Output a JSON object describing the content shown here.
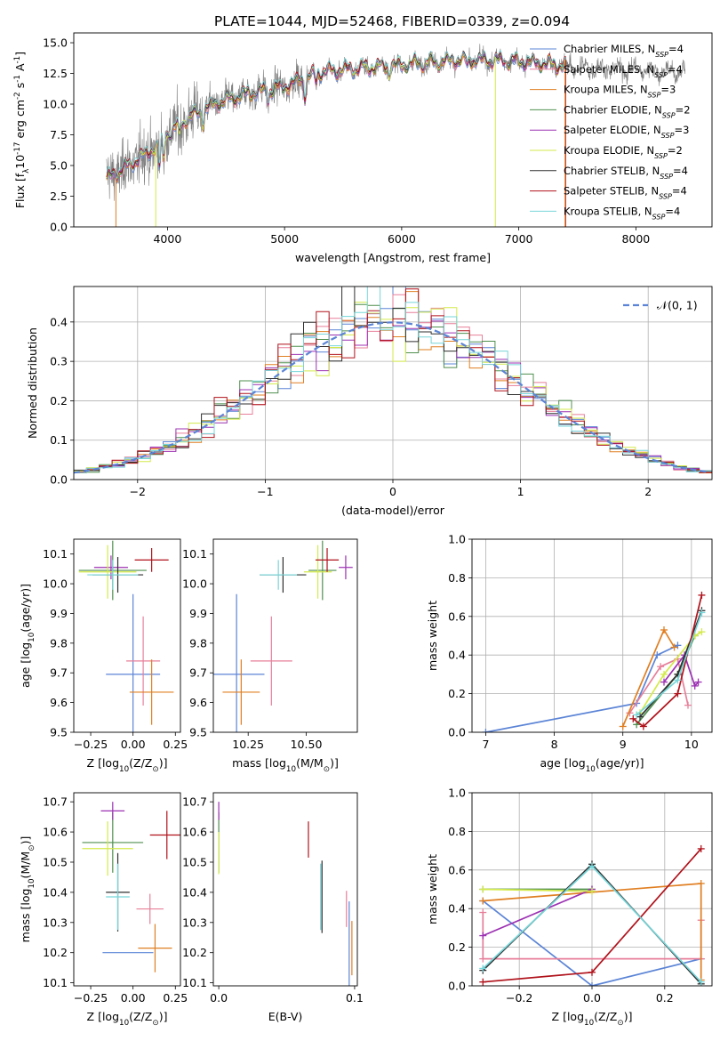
{
  "figure": {
    "title": "PLATE=1044, MJD=52468, FIBERID=0339, z=0.094"
  },
  "colors": {
    "chabrier_miles": "#5b84d6",
    "salpeter_miles": "#e77f9a",
    "kroupa_miles": "#e07f22",
    "chabrier_elodie": "#4f8f4f",
    "salpeter_elodie": "#9c31b3",
    "kroupa_elodie": "#d4ea4b",
    "chabrier_stelib": "#2f2f2f",
    "salpeter_stelib": "#b0121b",
    "kroupa_stelib": "#77d5d9",
    "data": "#7f7f7f",
    "normal": "#5b84d6",
    "grid": "#b0b0b0"
  },
  "chart_data": [
    {
      "id": "spectrum",
      "type": "line",
      "xlabel": "wavelength [Angstrom, rest frame]",
      "ylabel": "Flux [f$_\\lambda$10$^{-17}$ erg cm$^{-2}$ s$^{-1}$ A$^{-1}$]",
      "xlim": [
        3200,
        8650
      ],
      "ylim": [
        0,
        15.8
      ],
      "xticks": [
        4000,
        5000,
        6000,
        7000,
        8000
      ],
      "yticks": [
        0.0,
        2.5,
        5.0,
        7.5,
        10.0,
        12.5,
        15.0
      ],
      "grid": false,
      "legend_position": "top-right",
      "legend": [
        {
          "label": "Chabrier MILES, N",
          "sub": "SSP",
          "tail": "=4"
        },
        {
          "label": "Salpeter MILES, N",
          "sub": "SSP",
          "tail": "=4"
        },
        {
          "label": "Kroupa MILES, N",
          "sub": "SSP",
          "tail": "=3"
        },
        {
          "label": "Chabrier ELODIE, N",
          "sub": "SSP",
          "tail": "=2"
        },
        {
          "label": "Salpeter ELODIE, N",
          "sub": "SSP",
          "tail": "=3"
        },
        {
          "label": "Kroupa ELODIE, N",
          "sub": "SSP",
          "tail": "=2"
        },
        {
          "label": "Chabrier STELIB, N",
          "sub": "SSP",
          "tail": "=4"
        },
        {
          "label": "Salpeter STELIB, N",
          "sub": "SSP",
          "tail": "=4"
        },
        {
          "label": "Kroupa STELIB, N",
          "sub": "SSP",
          "tail": "=4"
        }
      ],
      "continuum": [
        [
          3500,
          4.0
        ],
        [
          3700,
          5.2
        ],
        [
          3900,
          6.5
        ],
        [
          4000,
          7.6
        ],
        [
          4200,
          9.0
        ],
        [
          4400,
          10.0
        ],
        [
          4700,
          10.9
        ],
        [
          5000,
          11.4
        ],
        [
          5300,
          12.6
        ],
        [
          5600,
          12.9
        ],
        [
          6000,
          13.2
        ],
        [
          6500,
          13.6
        ],
        [
          7000,
          13.5
        ],
        [
          7500,
          13.0
        ],
        [
          8000,
          12.8
        ],
        [
          8400,
          12.6
        ]
      ],
      "absorption": [
        [
          3933,
          2.0
        ],
        [
          3968,
          1.8
        ],
        [
          4101,
          1.0
        ],
        [
          4304,
          1.0
        ],
        [
          4861,
          0.9
        ],
        [
          5175,
          1.4
        ],
        [
          5270,
          0.7
        ],
        [
          5893,
          0.8
        ],
        [
          6563,
          0.6
        ],
        [
          8542,
          0.6
        ]
      ],
      "data_range": [
        3480,
        8420
      ],
      "model_range": [
        3480,
        7400
      ],
      "spikes": [
        [
          6800,
          0
        ],
        [
          7400,
          0
        ],
        [
          3530,
          0
        ],
        [
          3580,
          0
        ]
      ]
    },
    {
      "id": "residuals",
      "type": "histogram",
      "xlabel": "(data-model)/error",
      "ylabel": "Normed distribution",
      "xlim": [
        -2.5,
        2.5
      ],
      "ylim": [
        0,
        0.49
      ],
      "xticks": [
        -2,
        -1,
        0,
        1,
        2
      ],
      "yticks": [
        0.0,
        0.1,
        0.2,
        0.3,
        0.4
      ],
      "grid": true,
      "bin_width": 0.1,
      "legend_position": "top-right",
      "legend": [
        {
          "label": "𝒩(0, 1)"
        }
      ],
      "normal_curve": {
        "mean": 0,
        "sigma": 1
      }
    },
    {
      "id": "age_vs_Z",
      "type": "errorbar",
      "xlabel": "Z [log$_{10}$(Z/Z$_\\odot$)]",
      "ylabel": "age  [log$_{10}$(age/yr)]",
      "xlim": [
        -0.35,
        0.28
      ],
      "ylim": [
        9.5,
        10.15
      ],
      "xticks": [
        -0.25,
        0.0,
        0.25
      ],
      "yticks": [
        9.5,
        9.6,
        9.7,
        9.8,
        9.9,
        10.0,
        10.1
      ],
      "grid": false,
      "points": [
        {
          "series": "chabrier_miles",
          "x": 0.0,
          "y": 9.695,
          "xerr": 0.16,
          "yerr": 0.27
        },
        {
          "series": "salpeter_miles",
          "x": 0.06,
          "y": 9.74,
          "xerr": 0.1,
          "yerr": 0.15
        },
        {
          "series": "kroupa_miles",
          "x": 0.11,
          "y": 9.635,
          "xerr": 0.13,
          "yerr": 0.11
        },
        {
          "series": "chabrier_elodie",
          "x": -0.12,
          "y": 10.045,
          "xerr": 0.2,
          "yerr": 0.1
        },
        {
          "series": "salpeter_elodie",
          "x": -0.13,
          "y": 10.055,
          "xerr": 0.1,
          "yerr": 0.04
        },
        {
          "series": "kroupa_elodie",
          "x": -0.15,
          "y": 10.04,
          "xerr": 0.17,
          "yerr": 0.09
        },
        {
          "series": "chabrier_stelib",
          "x": -0.09,
          "y": 10.03,
          "xerr": 0.15,
          "yerr": 0.06
        },
        {
          "series": "salpeter_stelib",
          "x": 0.11,
          "y": 10.08,
          "xerr": 0.1,
          "yerr": 0.04
        },
        {
          "series": "kroupa_stelib",
          "x": -0.12,
          "y": 10.03,
          "xerr": 0.15,
          "yerr": 0.05
        }
      ]
    },
    {
      "id": "age_vs_mass",
      "type": "errorbar",
      "xlabel": "mass [log$_{10}$(M/M$_\\odot$)]",
      "ylabel": "",
      "xlim": [
        10.1,
        10.72
      ],
      "ylim": [
        9.5,
        10.15
      ],
      "xticks": [
        10.25,
        10.5
      ],
      "yticks": [
        9.5,
        9.6,
        9.7,
        9.8,
        9.9,
        10.0,
        10.1
      ],
      "xtick_labels": [
        "10.25",
        "10.50"
      ],
      "grid": false,
      "points": [
        {
          "series": "chabrier_miles",
          "x": 10.2,
          "y": 9.695,
          "xerr": 0.12,
          "yerr": 0.27
        },
        {
          "series": "salpeter_miles",
          "x": 10.35,
          "y": 9.74,
          "xerr": 0.09,
          "yerr": 0.15
        },
        {
          "series": "kroupa_miles",
          "x": 10.22,
          "y": 9.635,
          "xerr": 0.08,
          "yerr": 0.11
        },
        {
          "series": "chabrier_elodie",
          "x": 10.57,
          "y": 10.045,
          "xerr": 0.06,
          "yerr": 0.1
        },
        {
          "series": "salpeter_elodie",
          "x": 10.67,
          "y": 10.055,
          "xerr": 0.03,
          "yerr": 0.04
        },
        {
          "series": "kroupa_elodie",
          "x": 10.55,
          "y": 10.04,
          "xerr": 0.06,
          "yerr": 0.09
        },
        {
          "series": "chabrier_stelib",
          "x": 10.4,
          "y": 10.03,
          "xerr": 0.1,
          "yerr": 0.06
        },
        {
          "series": "salpeter_stelib",
          "x": 10.59,
          "y": 10.08,
          "xerr": 0.05,
          "yerr": 0.04
        },
        {
          "series": "kroupa_stelib",
          "x": 10.38,
          "y": 10.03,
          "xerr": 0.08,
          "yerr": 0.05
        }
      ]
    },
    {
      "id": "weight_vs_age",
      "type": "line",
      "xlabel": "age  [log$_{10}$(age/yr)]",
      "ylabel": "mass weight",
      "xlim": [
        6.8,
        10.3
      ],
      "ylim": [
        0,
        1.0
      ],
      "xticks": [
        7,
        8,
        9,
        10
      ],
      "yticks": [
        0.0,
        0.2,
        0.4,
        0.6,
        0.8,
        1.0
      ],
      "grid": true,
      "series": [
        {
          "name": "chabrier_miles",
          "points": [
            [
              7.0,
              0.0
            ],
            [
              9.2,
              0.15
            ],
            [
              9.5,
              0.4
            ],
            [
              9.8,
              0.45
            ]
          ]
        },
        {
          "name": "salpeter_miles",
          "points": [
            [
              9.1,
              0.1
            ],
            [
              9.55,
              0.34
            ],
            [
              9.8,
              0.38
            ],
            [
              9.95,
              0.14
            ]
          ]
        },
        {
          "name": "kroupa_miles",
          "points": [
            [
              9.0,
              0.03
            ],
            [
              9.6,
              0.53
            ],
            [
              9.75,
              0.44
            ]
          ]
        },
        {
          "name": "chabrier_elodie",
          "points": [
            [
              9.2,
              0.04
            ],
            [
              9.8,
              0.3
            ],
            [
              10.05,
              0.5
            ]
          ]
        },
        {
          "name": "salpeter_elodie",
          "points": [
            [
              9.6,
              0.26
            ],
            [
              9.9,
              0.4
            ],
            [
              10.05,
              0.24
            ],
            [
              10.1,
              0.26
            ]
          ]
        },
        {
          "name": "kroupa_elodie",
          "points": [
            [
              9.25,
              0.1
            ],
            [
              9.6,
              0.3
            ],
            [
              10.05,
              0.5
            ],
            [
              10.15,
              0.52
            ]
          ]
        },
        {
          "name": "chabrier_stelib",
          "points": [
            [
              9.25,
              0.08
            ],
            [
              9.8,
              0.3
            ],
            [
              10.15,
              0.63
            ]
          ]
        },
        {
          "name": "salpeter_stelib",
          "points": [
            [
              9.15,
              0.07
            ],
            [
              9.3,
              0.03
            ],
            [
              9.8,
              0.2
            ],
            [
              10.15,
              0.71
            ]
          ]
        },
        {
          "name": "kroupa_stelib",
          "points": [
            [
              9.2,
              0.09
            ],
            [
              9.8,
              0.27
            ],
            [
              10.15,
              0.62
            ]
          ]
        }
      ]
    },
    {
      "id": "mass_vs_Z",
      "type": "errorbar",
      "xlabel": "Z [log$_{10}$(Z/Z$_\\odot$)]",
      "ylabel": "mass [log$_{10}$(M/M$_\\odot$)]",
      "xlim": [
        -0.35,
        0.28
      ],
      "ylim": [
        10.09,
        10.73
      ],
      "xticks": [
        -0.25,
        0.0,
        0.25
      ],
      "yticks": [
        10.1,
        10.2,
        10.3,
        10.4,
        10.5,
        10.6,
        10.7
      ],
      "grid": false,
      "points": [
        {
          "series": "chabrier_miles",
          "x": -0.03,
          "y": 10.2,
          "xerr": 0.15,
          "yerr": 0.0
        },
        {
          "series": "salpeter_miles",
          "x": 0.1,
          "y": 10.345,
          "xerr": 0.08,
          "yerr": 0.05
        },
        {
          "series": "kroupa_miles",
          "x": 0.13,
          "y": 10.215,
          "xerr": 0.1,
          "yerr": 0.08
        },
        {
          "series": "chabrier_elodie",
          "x": -0.12,
          "y": 10.565,
          "xerr": 0.18,
          "yerr": 0.1
        },
        {
          "series": "salpeter_elodie",
          "x": -0.12,
          "y": 10.67,
          "xerr": 0.07,
          "yerr": 0.03
        },
        {
          "series": "kroupa_elodie",
          "x": -0.15,
          "y": 10.545,
          "xerr": 0.15,
          "yerr": 0.09
        },
        {
          "series": "chabrier_stelib",
          "x": -0.09,
          "y": 10.4,
          "xerr": 0.07,
          "yerr": 0.13
        },
        {
          "series": "salpeter_stelib",
          "x": 0.2,
          "y": 10.59,
          "xerr": 0.1,
          "yerr": 0.08
        },
        {
          "series": "kroupa_stelib",
          "x": -0.09,
          "y": 10.385,
          "xerr": 0.07,
          "yerr": 0.11
        }
      ]
    },
    {
      "id": "mass_vs_ebv",
      "type": "errorbar",
      "xlabel": "E(B-V)",
      "ylabel": "",
      "xlim": [
        -0.004,
        0.102
      ],
      "ylim": [
        10.09,
        10.73
      ],
      "xticks": [
        0.0,
        0.1
      ],
      "yticks": [
        10.1,
        10.2,
        10.3,
        10.4,
        10.5,
        10.6,
        10.7
      ],
      "grid": false,
      "points": [
        {
          "series": "chabrier_miles",
          "x": 0.096,
          "y": 10.2,
          "xerr": 0,
          "yerr": 0.17
        },
        {
          "series": "salpeter_miles",
          "x": 0.094,
          "y": 10.345,
          "xerr": 0,
          "yerr": 0.06
        },
        {
          "series": "kroupa_miles",
          "x": 0.098,
          "y": 10.215,
          "xerr": 0,
          "yerr": 0.09
        },
        {
          "series": "chabrier_elodie",
          "x": 0.0,
          "y": 10.565,
          "xerr": 0,
          "yerr": 0.1
        },
        {
          "series": "salpeter_elodie",
          "x": 0.0,
          "y": 10.67,
          "xerr": 0,
          "yerr": 0.03
        },
        {
          "series": "kroupa_elodie",
          "x": 0.0,
          "y": 10.53,
          "xerr": 0,
          "yerr": 0.07
        },
        {
          "series": "chabrier_stelib",
          "x": 0.076,
          "y": 10.385,
          "xerr": 0,
          "yerr": 0.12
        },
        {
          "series": "salpeter_stelib",
          "x": 0.066,
          "y": 10.575,
          "xerr": 0,
          "yerr": 0.06
        },
        {
          "series": "kroupa_stelib",
          "x": 0.075,
          "y": 10.385,
          "xerr": 0,
          "yerr": 0.11
        }
      ]
    },
    {
      "id": "weight_vs_Z",
      "type": "line",
      "xlabel": "Z [log$_{10}$(Z/Z$_\\odot$)]",
      "ylabel": "mass weight",
      "xlim": [
        -0.33,
        0.33
      ],
      "ylim": [
        0,
        1.0
      ],
      "xticks": [
        -0.2,
        0.0,
        0.2
      ],
      "yticks": [
        0.0,
        0.2,
        0.4,
        0.6,
        0.8,
        1.0
      ],
      "grid": true,
      "series": [
        {
          "name": "chabrier_miles",
          "points": [
            [
              -0.3,
              0.44
            ],
            [
              0.0,
              0.0
            ],
            [
              0.3,
              0.14
            ]
          ]
        },
        {
          "name": "salpeter_miles",
          "points": [
            [
              -0.3,
              0.38
            ],
            [
              -0.3,
              0.14
            ],
            [
              0.3,
              0.14
            ],
            [
              0.3,
              0.34
            ]
          ]
        },
        {
          "name": "kroupa_miles",
          "points": [
            [
              -0.3,
              0.44
            ],
            [
              0.3,
              0.53
            ],
            [
              0.3,
              0.03
            ]
          ]
        },
        {
          "name": "chabrier_elodie",
          "points": [
            [
              -0.3,
              0.5
            ],
            [
              0.0,
              0.5
            ]
          ]
        },
        {
          "name": "salpeter_elodie",
          "points": [
            [
              -0.3,
              0.26
            ],
            [
              0.0,
              0.5
            ]
          ]
        },
        {
          "name": "kroupa_elodie",
          "points": [
            [
              -0.3,
              0.5
            ],
            [
              0.0,
              0.49
            ]
          ]
        },
        {
          "name": "chabrier_stelib",
          "points": [
            [
              -0.3,
              0.08
            ],
            [
              0.0,
              0.63
            ],
            [
              0.3,
              0.01
            ]
          ]
        },
        {
          "name": "salpeter_stelib",
          "points": [
            [
              -0.3,
              0.02
            ],
            [
              0.0,
              0.07
            ],
            [
              0.3,
              0.71
            ]
          ]
        },
        {
          "name": "kroupa_stelib",
          "points": [
            [
              -0.3,
              0.09
            ],
            [
              0.0,
              0.62
            ],
            [
              0.3,
              0.02
            ]
          ]
        }
      ]
    }
  ],
  "series_order": [
    "chabrier_miles",
    "salpeter_miles",
    "kroupa_miles",
    "chabrier_elodie",
    "salpeter_elodie",
    "kroupa_elodie",
    "chabrier_stelib",
    "salpeter_stelib",
    "kroupa_stelib"
  ]
}
